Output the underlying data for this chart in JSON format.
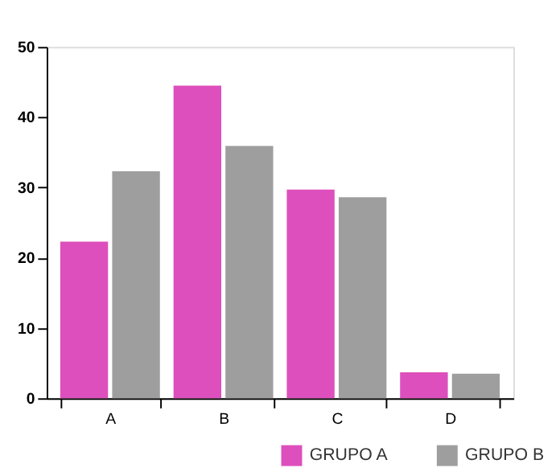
{
  "chart_data": {
    "type": "bar",
    "categories": [
      "A",
      "B",
      "C",
      "D"
    ],
    "series": [
      {
        "name": "GRUPO A",
        "color": "#dd4fbc",
        "values": [
          22.3,
          44.5,
          29.7,
          3.7
        ]
      },
      {
        "name": "GRUPO B",
        "color": "#9e9e9e",
        "values": [
          32.3,
          35.9,
          28.6,
          3.5
        ]
      }
    ],
    "ylim": [
      0,
      50
    ],
    "yticks": [
      0,
      10,
      20,
      30,
      40,
      50
    ],
    "grid": false,
    "legend": "bottom right"
  }
}
